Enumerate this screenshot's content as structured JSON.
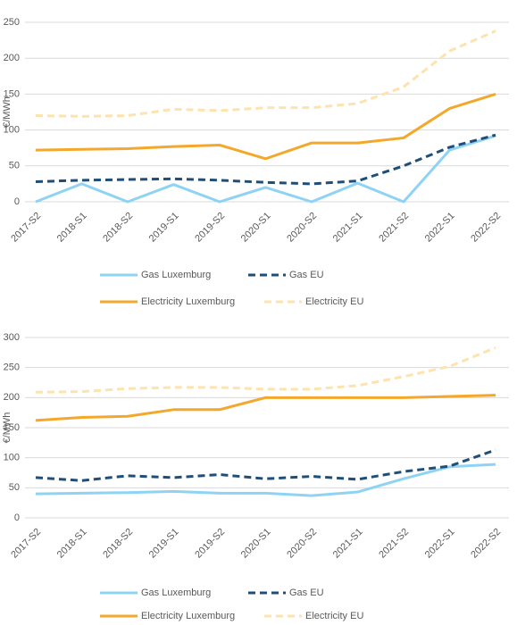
{
  "chart_data": [
    {
      "type": "line",
      "ylabel": "€/MWh",
      "categories": [
        "2017-S2",
        "2018-S1",
        "2018-S2",
        "2019-S1",
        "2019-S2",
        "2020-S1",
        "2020-S2",
        "2021-S1",
        "2021-S2",
        "2022-S1",
        "2022-S2"
      ],
      "ylim": [
        0,
        250
      ],
      "yticks": [
        0,
        50,
        100,
        150,
        200,
        250
      ],
      "grid": true,
      "series": [
        {
          "name": "Gas Luxemburg",
          "color": "#8fd3f4",
          "line_style": "solid",
          "values": [
            0,
            25,
            0,
            24,
            0,
            20,
            0,
            26,
            0,
            72,
            92
          ]
        },
        {
          "name": "Gas EU",
          "color": "#1f4e79",
          "line_style": "dashed",
          "values": [
            28,
            30,
            31,
            32,
            30,
            27,
            25,
            29,
            50,
            76,
            93
          ]
        },
        {
          "name": "Electricity Luxemburg",
          "color": "#f4a82b",
          "line_style": "solid",
          "values": [
            72,
            73,
            74,
            77,
            79,
            60,
            82,
            82,
            89,
            130,
            150
          ]
        },
        {
          "name": "Electricity EU",
          "color": "#fde3ad",
          "line_style": "dashed",
          "values": [
            120,
            119,
            120,
            129,
            127,
            131,
            131,
            137,
            160,
            210,
            238
          ]
        }
      ]
    },
    {
      "type": "line",
      "ylabel": "€/MWh",
      "categories": [
        "2017-S2",
        "2018-S1",
        "2018-S2",
        "2019-S1",
        "2019-S2",
        "2020-S1",
        "2020-S2",
        "2021-S1",
        "2021-S2",
        "2022-S1",
        "2022-S2"
      ],
      "ylim": [
        0,
        300
      ],
      "yticks": [
        0,
        50,
        100,
        150,
        200,
        250,
        300
      ],
      "grid": true,
      "series": [
        {
          "name": "Gas Luxemburg",
          "color": "#8fd3f4",
          "line_style": "solid",
          "values": [
            40,
            41,
            42,
            44,
            41,
            41,
            37,
            43,
            65,
            85,
            89
          ]
        },
        {
          "name": "Gas EU",
          "color": "#1f4e79",
          "line_style": "dashed",
          "values": [
            67,
            62,
            70,
            67,
            72,
            65,
            69,
            64,
            77,
            86,
            113
          ]
        },
        {
          "name": "Electricity Luxemburg",
          "color": "#f4a82b",
          "line_style": "solid",
          "values": [
            162,
            167,
            169,
            180,
            180,
            200,
            200,
            200,
            200,
            202,
            204
          ]
        },
        {
          "name": "Electricity EU",
          "color": "#fde3ad",
          "line_style": "dashed",
          "values": [
            209,
            210,
            215,
            217,
            217,
            214,
            214,
            220,
            235,
            252,
            283
          ]
        }
      ]
    }
  ]
}
